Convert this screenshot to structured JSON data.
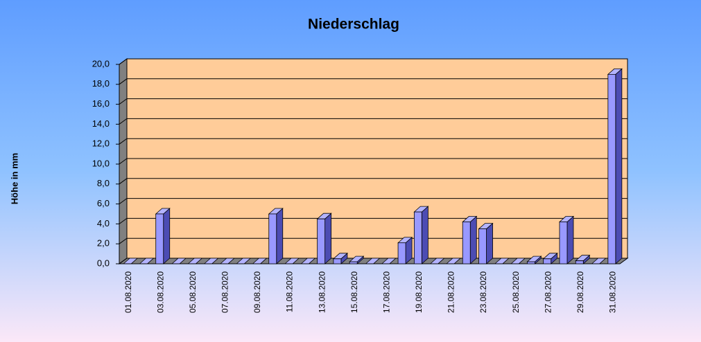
{
  "chart_data": {
    "type": "bar3d",
    "title": "Niederschlag",
    "y_label": "Höhe in mm",
    "categories": [
      "01.08.2020",
      null,
      "03.08.2020",
      null,
      "05.08.2020",
      null,
      "07.08.2020",
      null,
      "09.08.2020",
      null,
      "11.08.2020",
      null,
      "13.08.2020",
      null,
      "15.08.2020",
      null,
      "17.08.2020",
      null,
      "19.08.2020",
      null,
      "21.08.2020",
      null,
      "23.08.2020",
      null,
      "25.08.2020",
      null,
      "27.08.2020",
      null,
      "29.08.2020",
      null,
      "31.08.2020"
    ],
    "values": [
      0,
      0,
      5.0,
      0,
      0,
      0,
      0,
      0,
      0,
      5.0,
      0,
      0,
      4.5,
      0.5,
      0.2,
      0,
      0,
      2.1,
      5.2,
      0,
      0,
      4.2,
      3.5,
      0,
      0,
      0.2,
      0.5,
      4.2,
      0.3,
      0,
      19.0
    ],
    "color": "#9999ff",
    "ylim": [
      0,
      20
    ],
    "yticks": [
      {
        "value": 0,
        "label": "0,0"
      },
      {
        "value": 2,
        "label": "2,0"
      },
      {
        "value": 4,
        "label": "4,0"
      },
      {
        "value": 6,
        "label": "6,0"
      },
      {
        "value": 8,
        "label": "8,0"
      },
      {
        "value": 10,
        "label": "10,0"
      },
      {
        "value": 12,
        "label": "12,0"
      },
      {
        "value": 14,
        "label": "14,0"
      },
      {
        "value": 16,
        "label": "16,0"
      },
      {
        "value": 18,
        "label": "18,0"
      },
      {
        "value": 20,
        "label": "20,0"
      }
    ],
    "grid": true
  }
}
